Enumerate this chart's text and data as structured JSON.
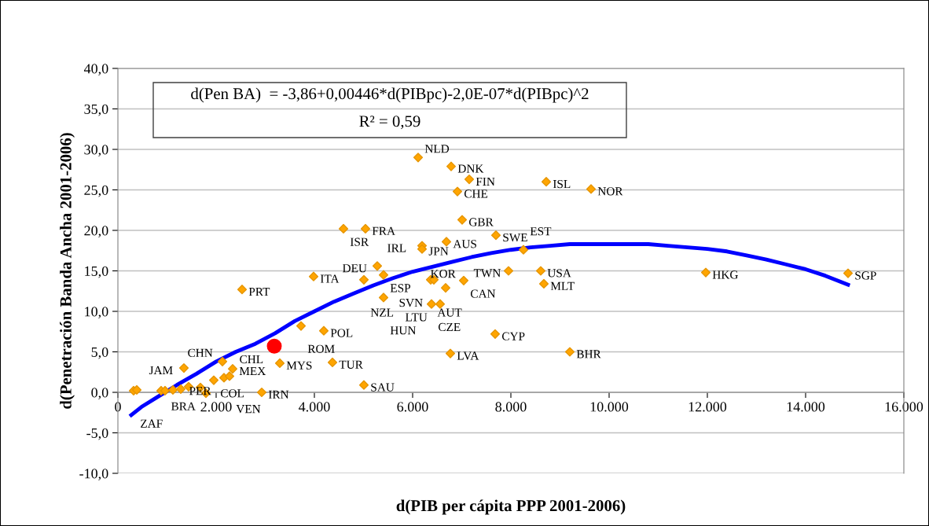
{
  "chart_data": {
    "type": "scatter",
    "xlabel": "d(PIB per cápita PPP 2001-2006)",
    "ylabel": "d(Penetración Banda Ancha 2001-2006)",
    "xlim": [
      0,
      16000
    ],
    "ylim": [
      -10,
      40
    ],
    "xticks": [
      {
        "value": 0,
        "label": "0"
      },
      {
        "value": 2000,
        "label": "2.000"
      },
      {
        "value": 4000,
        "label": "4.000"
      },
      {
        "value": 6000,
        "label": "6.000"
      },
      {
        "value": 8000,
        "label": "8.000"
      },
      {
        "value": 10000,
        "label": "10.000"
      },
      {
        "value": 12000,
        "label": "12.000"
      },
      {
        "value": 14000,
        "label": "14.000"
      },
      {
        "value": 16000,
        "label": "16.000"
      }
    ],
    "yticks": [
      {
        "value": -10,
        "label": "-10,0"
      },
      {
        "value": -5,
        "label": "-5,0"
      },
      {
        "value": 0,
        "label": "0,0"
      },
      {
        "value": 5,
        "label": "5,0"
      },
      {
        "value": 10,
        "label": "10,0"
      },
      {
        "value": 15,
        "label": "15,0"
      },
      {
        "value": 20,
        "label": "20,0"
      },
      {
        "value": 25,
        "label": "25,0"
      },
      {
        "value": 30,
        "label": "30,0"
      },
      {
        "value": 35,
        "label": "35,0"
      },
      {
        "value": 40,
        "label": "40,0"
      }
    ],
    "grid": "y",
    "legend": false,
    "series": [
      {
        "color": "#ffa500",
        "marker": "diamond",
        "x": [
          6112,
          6784,
          7152,
          6912,
          8720,
          9632,
          7008,
          4592,
          5040,
          7696,
          6688,
          6192,
          6192,
          8256,
          5280,
          7952,
          8608,
          8672,
          11968,
          14864,
          3984,
          2528,
          5008,
          5408,
          6368,
          6432,
          7040,
          6672,
          5408,
          6384,
          6560,
          3728,
          4192,
          7680,
          6768,
          9200,
          3296,
          4368,
          5008,
          2928,
          2128,
          1344,
          2336,
          1952,
          2160,
          2272,
          1792,
          320,
          384,
          880,
          960,
          1120,
          1280,
          1440,
          1680
        ],
        "values": [
          29.0,
          27.9,
          26.3,
          24.8,
          26.0,
          25.1,
          21.3,
          20.2,
          20.2,
          19.4,
          18.6,
          18.1,
          17.7,
          17.6,
          15.6,
          15.0,
          15.0,
          13.4,
          14.8,
          14.7,
          14.3,
          12.7,
          13.9,
          14.5,
          13.9,
          13.9,
          13.8,
          12.9,
          11.7,
          10.9,
          10.9,
          8.2,
          7.6,
          7.2,
          4.8,
          5.0,
          3.6,
          3.7,
          0.9,
          0.0,
          3.8,
          3.0,
          2.9,
          1.5,
          1.8,
          2.0,
          -0.1,
          0.2,
          0.3,
          0.2,
          0.2,
          0.3,
          0.4,
          0.7,
          0.6
        ]
      },
      {
        "color": "#ff0000",
        "marker": "circle",
        "x": [
          3184
        ],
        "values": [
          5.7
        ]
      },
      {
        "type": "line",
        "color": "#0000ff",
        "marker": "none",
        "line_style": "solid",
        "x": [
          272,
          480,
          800,
          1200,
          1600,
          2000,
          2400,
          2800,
          3200,
          3600,
          4000,
          4400,
          4800,
          5200,
          5600,
          6000,
          6400,
          6800,
          7200,
          7600,
          8000,
          8400,
          8800,
          9200,
          9600,
          10000,
          10400,
          10800,
          11200,
          11600,
          12000,
          12400,
          12800,
          13200,
          13600,
          14000,
          14400,
          14864
        ],
        "values": [
          -2.8,
          -1.8,
          -0.6,
          0.9,
          2.3,
          3.8,
          5.0,
          6.0,
          7.3,
          8.8,
          10.0,
          11.2,
          12.2,
          13.2,
          14.1,
          14.9,
          15.5,
          16.1,
          16.7,
          17.2,
          17.6,
          17.9,
          18.1,
          18.3,
          18.3,
          18.3,
          18.3,
          18.3,
          18.1,
          17.9,
          17.7,
          17.4,
          16.9,
          16.4,
          15.8,
          15.2,
          14.4,
          13.3
        ]
      }
    ],
    "annotations": [
      "d(Pen BA)  = -3,86+0,00446*d(PIBpc)-2,0E-07*d(PIBpc)^2",
      "R² = 0,59",
      {
        "text": "NLD",
        "x": 6112,
        "y": 29.0
      },
      {
        "text": "DNK",
        "x": 6784,
        "y": 27.9
      },
      {
        "text": "FIN",
        "x": 7152,
        "y": 26.3
      },
      {
        "text": "CHE",
        "x": 6912,
        "y": 24.8
      },
      {
        "text": "ISL",
        "x": 8720,
        "y": 26.0
      },
      {
        "text": "NOR",
        "x": 9632,
        "y": 25.1
      },
      {
        "text": "GBR",
        "x": 7008,
        "y": 21.3
      },
      {
        "text": "ISR",
        "x": 4592,
        "y": 20.2
      },
      {
        "text": "FRA",
        "x": 5040,
        "y": 20.2
      },
      {
        "text": "SWE",
        "x": 7696,
        "y": 19.4
      },
      {
        "text": "AUS",
        "x": 6688,
        "y": 18.6
      },
      {
        "text": "IRL",
        "x": 6192,
        "y": 18.1
      },
      {
        "text": "JPN",
        "x": 6192,
        "y": 17.7
      },
      {
        "text": "EST",
        "x": 8256,
        "y": 17.6
      },
      {
        "text": "DEU",
        "x": 5280,
        "y": 15.6
      },
      {
        "text": "TWN",
        "x": 7952,
        "y": 15.0
      },
      {
        "text": "USA",
        "x": 8608,
        "y": 15.0
      },
      {
        "text": "MLT",
        "x": 8672,
        "y": 13.4
      },
      {
        "text": "HKG",
        "x": 11968,
        "y": 14.8
      },
      {
        "text": "SGP",
        "x": 14864,
        "y": 14.7
      },
      {
        "text": "ITA",
        "x": 3984,
        "y": 14.3
      },
      {
        "text": "PRT",
        "x": 2528,
        "y": 12.7
      },
      {
        "text": "NZL",
        "x": 5008,
        "y": 13.9
      },
      {
        "text": "ESP",
        "x": 5408,
        "y": 14.5
      },
      {
        "text": "AUT",
        "x": 6368,
        "y": 13.9
      },
      {
        "text": "SVN",
        "x": 6432,
        "y": 13.9
      },
      {
        "text": "CAN",
        "x": 7040,
        "y": 13.8
      },
      {
        "text": "KOR",
        "x": 6672,
        "y": 12.9
      },
      {
        "text": "HUN",
        "x": 5408,
        "y": 11.7
      },
      {
        "text": "CZE",
        "x": 6384,
        "y": 10.9
      },
      {
        "text": "LTU",
        "x": 6560,
        "y": 10.9
      },
      {
        "text": "ROM",
        "x": 3728,
        "y": 8.2
      },
      {
        "text": "POL",
        "x": 4192,
        "y": 7.6
      },
      {
        "text": "CYP",
        "x": 7680,
        "y": 7.2
      },
      {
        "text": "LVA",
        "x": 6768,
        "y": 4.8
      },
      {
        "text": "BHR",
        "x": 9200,
        "y": 5.0
      },
      {
        "text": "MYS",
        "x": 3296,
        "y": 3.6
      },
      {
        "text": "TUR",
        "x": 4368,
        "y": 3.7
      },
      {
        "text": "SAU",
        "x": 5008,
        "y": 0.9
      },
      {
        "text": "IRN",
        "x": 2928,
        "y": 0.0
      },
      {
        "text": "CHN",
        "x": 2128,
        "y": 3.8
      },
      {
        "text": "JAM",
        "x": 1344,
        "y": 3.0
      },
      {
        "text": "MEX",
        "x": 2336,
        "y": 2.9
      },
      {
        "text": "COL",
        "x": 1952,
        "y": 1.5
      },
      {
        "text": "PER",
        "x": 2160,
        "y": 1.8
      },
      {
        "text": "VEN",
        "x": 2272,
        "y": 2.0
      },
      {
        "text": "BRA",
        "x": 1792,
        "y": -0.1
      },
      {
        "text": "ZAF",
        "x": 320,
        "y": 0.2
      },
      {
        "text": "CHL",
        "x": 3184,
        "y": 5.7
      }
    ]
  }
}
